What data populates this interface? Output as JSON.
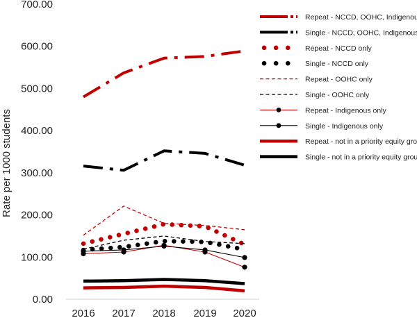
{
  "chart_data": {
    "type": "line",
    "title": "",
    "xlabel": "",
    "ylabel": "Rate per 1000 students",
    "ylim": [
      0,
      700
    ],
    "y_ticks": [
      "0.00",
      "100.00",
      "200.00",
      "300.00",
      "400.00",
      "500.00",
      "600.00",
      "700.00"
    ],
    "categories": [
      "2016",
      "2017",
      "2018",
      "2019",
      "2020"
    ],
    "legend_position": "right",
    "series": [
      {
        "name": "Repeat - NCCD, OOHC, Indigenous",
        "color": "#c00000",
        "style": "dashdot-thick",
        "values": [
          480,
          537,
          572,
          576,
          589
        ]
      },
      {
        "name": "Single - NCCD, OOHC, Indigenous",
        "color": "#000000",
        "style": "dashdot-thick",
        "values": [
          316,
          306,
          352,
          346,
          318
        ]
      },
      {
        "name": "Repeat - NCCD only",
        "color": "#c00000",
        "style": "dotted-round",
        "values": [
          132,
          155,
          178,
          173,
          130
        ]
      },
      {
        "name": "Single - NCCD only",
        "color": "#000000",
        "style": "dotted-round",
        "values": [
          117,
          124,
          138,
          136,
          118
        ]
      },
      {
        "name": "Repeat - OOHC only",
        "color": "#c00000",
        "style": "dashed-thin",
        "values": [
          152,
          221,
          180,
          175,
          165
        ]
      },
      {
        "name": "Single - OOHC only",
        "color": "#000000",
        "style": "dashed-thin",
        "values": [
          119,
          140,
          150,
          137,
          132
        ]
      },
      {
        "name": "Repeat - Indigenous only",
        "color": "#c00000",
        "style": "solid-marker",
        "values": [
          108,
          112,
          128,
          112,
          76
        ]
      },
      {
        "name": "Single - Indigenous only",
        "color": "#000000",
        "style": "solid-marker",
        "values": [
          114,
          117,
          126,
          117,
          99
        ]
      },
      {
        "name": "Repeat - not in a priority equity group",
        "color": "#c00000",
        "style": "solid-thick",
        "values": [
          27,
          28,
          31,
          28,
          20
        ]
      },
      {
        "name": "Single - not in a priority equity group",
        "color": "#000000",
        "style": "solid-thick",
        "values": [
          43,
          44,
          47,
          44,
          37
        ]
      }
    ]
  }
}
